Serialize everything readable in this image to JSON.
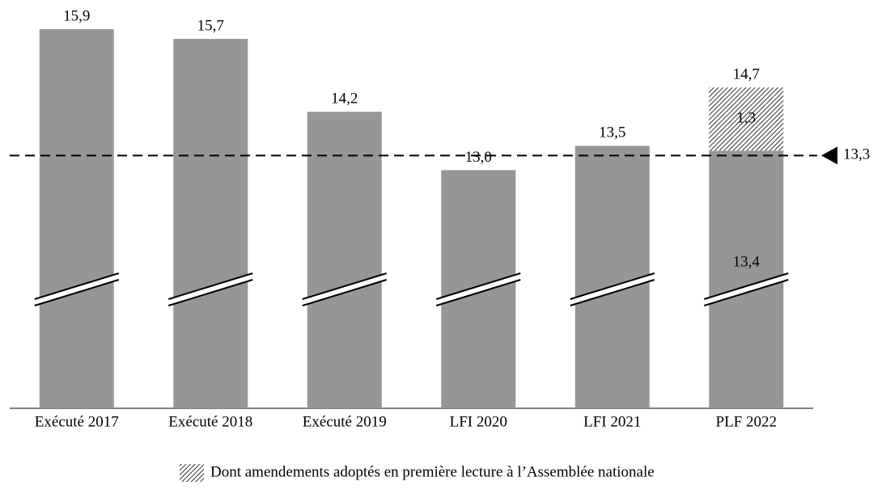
{
  "chart_data": {
    "type": "bar",
    "categories": [
      "Exécuté 2017",
      "Exécuté 2018",
      "Exécuté 2019",
      "LFI 2020",
      "LFI 2021",
      "PLF 2022"
    ],
    "values": [
      15.9,
      15.7,
      14.2,
      13.0,
      13.5,
      13.4
    ],
    "value_labels": [
      "15,9",
      "15,7",
      "14,2",
      "13,0",
      "13,5",
      "13,4"
    ],
    "color": "#969696",
    "stacked": {
      "name": "Dont amendements adoptés en première lecture à l’Assemblée nationale",
      "values": [
        null,
        null,
        null,
        null,
        null,
        1.3
      ],
      "value_labels": [
        null,
        null,
        null,
        null,
        null,
        "1,3"
      ]
    },
    "totals": [
      null,
      null,
      null,
      null,
      null,
      14.7
    ],
    "total_labels": [
      null,
      null,
      null,
      null,
      null,
      "14,7"
    ],
    "reference_line": {
      "value": 13.3,
      "label": "13,3"
    },
    "ylim": [
      8.1,
      16.5
    ],
    "axis_break": true
  }
}
